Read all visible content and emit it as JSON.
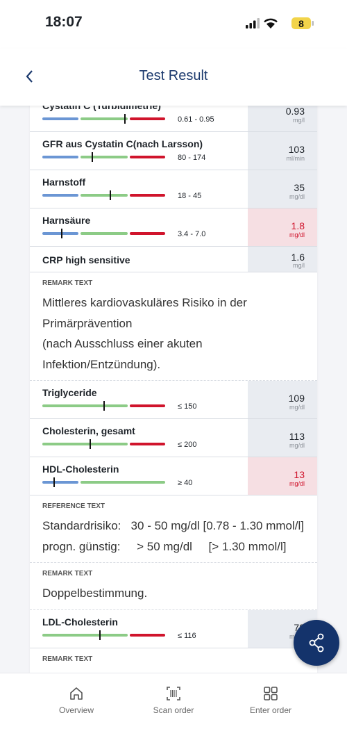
{
  "status_bar": {
    "time": "18:07",
    "battery": "8"
  },
  "header": {
    "title": "Test Result"
  },
  "items": [
    {
      "kind": "test",
      "name": "Cystatin C (Turbidimetrie)",
      "range": "0.61 - 0.95",
      "value": "0.93",
      "unit": "mg/l",
      "highlight": false,
      "cut_top": true
    },
    {
      "kind": "test",
      "name": "GFR aus Cystatin C(nach Larsson)",
      "range": "80 - 174",
      "value": "103",
      "unit": "ml/min",
      "highlight": false
    },
    {
      "kind": "test",
      "name": "Harnstoff",
      "range": "18 - 45",
      "value": "35",
      "unit": "mg/dl",
      "highlight": false
    },
    {
      "kind": "test",
      "name": "Harnsäure",
      "range": "3.4 - 7.0",
      "value": "1.8",
      "unit": "mg/dl",
      "highlight": true
    },
    {
      "kind": "test",
      "name": "CRP high sensitive",
      "value": "1.6",
      "unit": "mg/l",
      "highlight": false
    },
    {
      "kind": "note",
      "label": "REMARK TEXT",
      "lines": [
        "Mittleres kardiovaskuläres Risiko in der",
        "Primärprävention",
        "(nach Ausschluss einer akuten",
        "Infektion/Entzündung)."
      ]
    },
    {
      "kind": "test",
      "name": "Triglyceride",
      "range": "≤ 150",
      "value": "109",
      "unit": "mg/dl",
      "highlight": false
    },
    {
      "kind": "test",
      "name": "Cholesterin, gesamt",
      "range": "≤ 200",
      "value": "113",
      "unit": "mg/dl",
      "highlight": false
    },
    {
      "kind": "test",
      "name": "HDL-Cholesterin",
      "range": "≥ 40",
      "value": "13",
      "unit": "mg/dl",
      "highlight": true
    },
    {
      "kind": "note",
      "label": "REFERENCE TEXT",
      "lines": [
        "Standardrisiko:   30 - 50 mg/dl [0.78 - 1.30 mmol/l]",
        "progn. günstig:     > 50 mg/dl     [> 1.30 mmol/l]"
      ]
    },
    {
      "kind": "note",
      "label": "REMARK TEXT",
      "lines": [
        "Doppelbestimmung."
      ]
    },
    {
      "kind": "test",
      "name": "LDL-Cholesterin",
      "range": "≤ 116",
      "value": "78",
      "unit": "mg/dl",
      "highlight": false
    },
    {
      "kind": "note",
      "label": "REMARK TEXT",
      "lines": []
    }
  ],
  "nav": [
    {
      "label": "Overview"
    },
    {
      "label": "Scan order"
    },
    {
      "label": "Enter order"
    }
  ]
}
